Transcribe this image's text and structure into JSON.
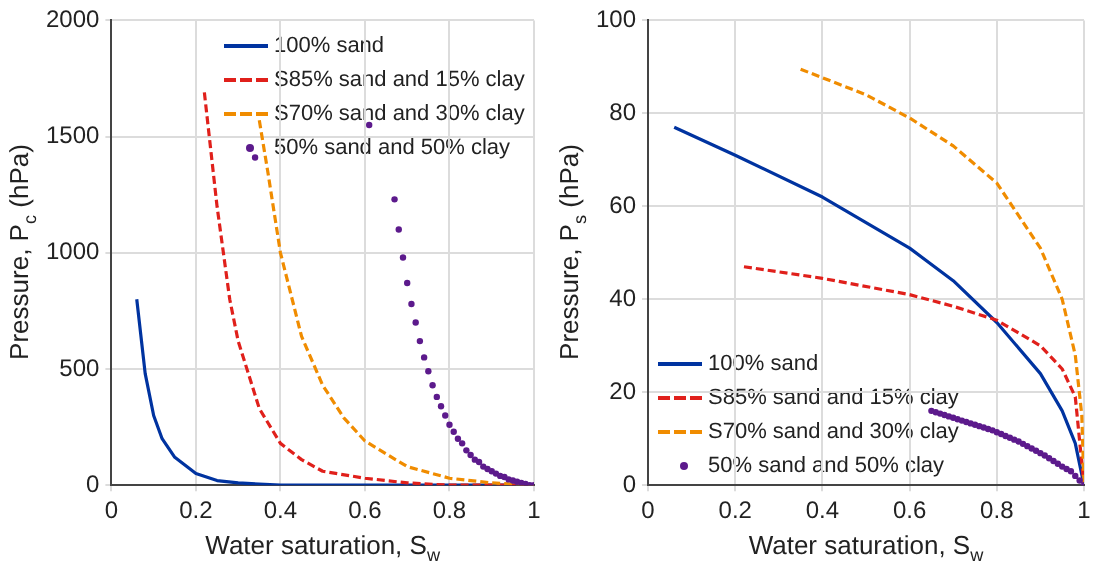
{
  "chart_data": [
    {
      "type": "line",
      "xlabel": "Water saturation, S$_{w}$",
      "ylabel": "Pressure, P$_{c}$ (hPa)",
      "xlim": [
        0,
        1
      ],
      "ylim": [
        0,
        2000
      ],
      "xticks": [
        0,
        0.2,
        0.4,
        0.6,
        0.8,
        1
      ],
      "yticks": [
        0,
        500,
        1000,
        1500,
        2000
      ],
      "grid": true,
      "legend": "top right",
      "series": [
        {
          "name": "100% sand",
          "color": "#0033a0",
          "line_style": "solid",
          "x": [
            0.06,
            0.08,
            0.1,
            0.12,
            0.15,
            0.2,
            0.25,
            0.3,
            0.4,
            0.6,
            0.8,
            1
          ],
          "values": [
            800,
            480,
            300,
            200,
            120,
            50,
            20,
            10,
            0,
            0,
            0,
            0
          ]
        },
        {
          "name": "S85% sand and 15% clay",
          "color": "#e0201b",
          "line_style": "dashed",
          "x": [
            0.22,
            0.25,
            0.28,
            0.3,
            0.35,
            0.4,
            0.45,
            0.5,
            0.6,
            0.7,
            0.8,
            1
          ],
          "values": [
            1690,
            1200,
            800,
            620,
            330,
            180,
            110,
            60,
            30,
            10,
            0,
            0
          ]
        },
        {
          "name": "S70% sand and 30% clay",
          "color": "#f08c00",
          "line_style": "dashed",
          "x": [
            0.35,
            0.37,
            0.4,
            0.45,
            0.5,
            0.55,
            0.6,
            0.7,
            0.8,
            0.9,
            1
          ],
          "values": [
            1570,
            1350,
            1000,
            640,
            430,
            290,
            190,
            80,
            30,
            10,
            0
          ]
        },
        {
          "name": "50% sand and 50% clay",
          "type": "scatter",
          "marker": "circle",
          "color": "#5c1a8c",
          "x": [
            0.34,
            0.61,
            0.67,
            0.68,
            0.69,
            0.7,
            0.71,
            0.72,
            0.73,
            0.74,
            0.75,
            0.76,
            0.77,
            0.78,
            0.79,
            0.8,
            0.81,
            0.82,
            0.83,
            0.84,
            0.85,
            0.86,
            0.87,
            0.88,
            0.89,
            0.9,
            0.91,
            0.92,
            0.93,
            0.94,
            0.95,
            0.96,
            0.97,
            0.98,
            0.99,
            1
          ],
          "values": [
            1410,
            1550,
            1230,
            1100,
            980,
            870,
            780,
            700,
            620,
            550,
            490,
            430,
            380,
            340,
            300,
            260,
            230,
            200,
            180,
            150,
            130,
            110,
            100,
            80,
            70,
            60,
            50,
            40,
            35,
            25,
            20,
            15,
            10,
            5,
            0,
            0
          ]
        }
      ]
    },
    {
      "type": "line",
      "xlabel": "Water saturation, S$_{w}$",
      "ylabel": "Pressure, P$_{s}$ (hPa)",
      "xlim": [
        0,
        1
      ],
      "ylim": [
        0,
        100
      ],
      "xticks": [
        0,
        0.2,
        0.4,
        0.6,
        0.8,
        1
      ],
      "yticks": [
        0,
        20,
        40,
        60,
        80,
        100
      ],
      "grid": true,
      "legend": "bottom left",
      "series": [
        {
          "name": "100% sand",
          "color": "#0033a0",
          "line_style": "solid",
          "x": [
            0.06,
            0.2,
            0.4,
            0.6,
            0.7,
            0.8,
            0.9,
            0.95,
            0.98,
            1
          ],
          "values": [
            77,
            71,
            62,
            51,
            44,
            35,
            24,
            16,
            9,
            0
          ]
        },
        {
          "name": "S85% sand and 15% clay",
          "color": "#e0201b",
          "line_style": "dashed",
          "x": [
            0.22,
            0.4,
            0.6,
            0.7,
            0.8,
            0.9,
            0.95,
            0.98,
            1
          ],
          "values": [
            47,
            44.5,
            41,
            38.5,
            35.5,
            30,
            25,
            19,
            0
          ]
        },
        {
          "name": "S70% sand and 30% clay",
          "color": "#f08c00",
          "line_style": "dashed",
          "x": [
            0.35,
            0.5,
            0.6,
            0.7,
            0.8,
            0.9,
            0.95,
            0.98,
            0.995,
            1
          ],
          "values": [
            89.5,
            84,
            79,
            73,
            65,
            51,
            40,
            28,
            15,
            0
          ]
        },
        {
          "name": "50% sand and 50% clay",
          "type": "scatter",
          "marker": "circle",
          "color": "#5c1a8c",
          "x": [
            0.65,
            0.66,
            0.67,
            0.68,
            0.69,
            0.7,
            0.71,
            0.72,
            0.73,
            0.74,
            0.75,
            0.76,
            0.77,
            0.78,
            0.79,
            0.8,
            0.81,
            0.82,
            0.83,
            0.84,
            0.85,
            0.86,
            0.87,
            0.88,
            0.89,
            0.9,
            0.91,
            0.92,
            0.93,
            0.94,
            0.95,
            0.96,
            0.97,
            0.98,
            0.99,
            1
          ],
          "values": [
            16,
            15.7,
            15.4,
            15.1,
            14.8,
            14.5,
            14.2,
            13.9,
            13.6,
            13.3,
            13,
            12.7,
            12.4,
            12.1,
            11.8,
            11.4,
            11,
            10.6,
            10.2,
            9.8,
            9.4,
            8.9,
            8.4,
            7.9,
            7.4,
            6.9,
            6.4,
            5.8,
            5.2,
            4.6,
            4,
            3.5,
            3,
            2,
            1,
            0
          ]
        }
      ]
    }
  ]
}
